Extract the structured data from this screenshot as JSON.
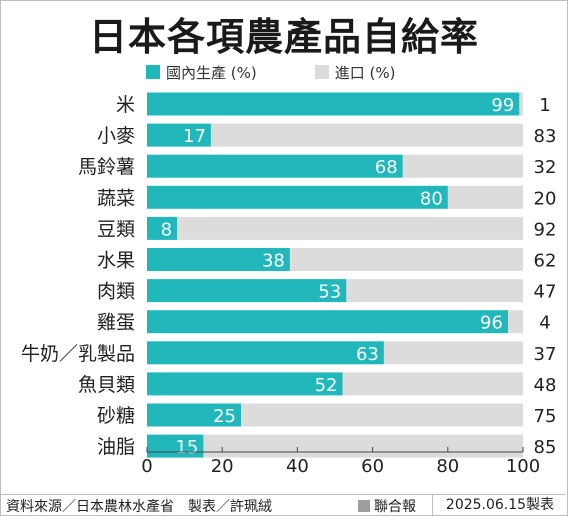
{
  "title": "日本各項農產品自給率",
  "legend": {
    "domestic_label": "國內生產 (%)",
    "import_label": "進口 (%)"
  },
  "colors": {
    "domestic": "#22b8bb",
    "import": "#dcdcdc"
  },
  "chart_data": {
    "type": "bar",
    "orientation": "horizontal",
    "stacked": true,
    "categories": [
      "米",
      "小麥",
      "馬鈴薯",
      "蔬菜",
      "豆類",
      "水果",
      "肉類",
      "雞蛋",
      "牛奶／乳製品",
      "魚貝類",
      "砂糖",
      "油脂"
    ],
    "series": [
      {
        "name": "國內生產 (%)",
        "values": [
          99,
          17,
          68,
          80,
          8,
          38,
          53,
          96,
          63,
          52,
          25,
          15
        ]
      },
      {
        "name": "進口 (%)",
        "values": [
          1,
          83,
          32,
          20,
          92,
          62,
          47,
          4,
          37,
          48,
          75,
          85
        ]
      }
    ],
    "xlim": [
      0,
      100
    ],
    "xticks": [
      "0",
      "20",
      "40",
      "60",
      "80",
      "100"
    ],
    "grid": false,
    "legend_position": "top"
  },
  "footer": {
    "source": "資料來源／日本農林水產省　製表／許珮絨",
    "brand": "聯合報",
    "date": "2025.06.15製表"
  }
}
